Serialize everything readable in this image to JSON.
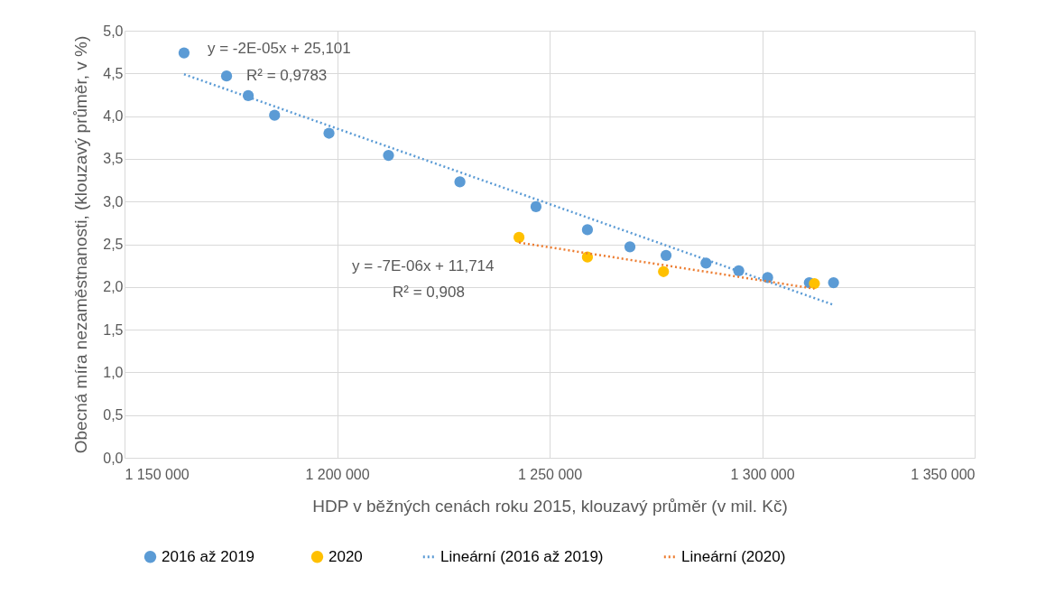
{
  "chart_data": {
    "type": "scatter",
    "xlabel": "HDP v běžných cenách roku 2015, klouzavý průměr (v mil. Kč)",
    "ylabel": "Obecná míra nezaměstnanosti, (klouzavý průměr, v %)",
    "xlim": [
      1150000,
      1350000
    ],
    "xticks": [
      {
        "value": 1150000,
        "label": "1 150 000"
      },
      {
        "value": 1200000,
        "label": "1 200 000"
      },
      {
        "value": 1250000,
        "label": "1 250 000"
      },
      {
        "value": 1300000,
        "label": "1 300 000"
      },
      {
        "value": 1350000,
        "label": "1 350 000"
      }
    ],
    "ylim": [
      0,
      5
    ],
    "yticks": [
      {
        "value": 0,
        "label": "0,0"
      },
      {
        "value": 0.5,
        "label": "0,5"
      },
      {
        "value": 1,
        "label": "1,0"
      },
      {
        "value": 1.5,
        "label": "1,5"
      },
      {
        "value": 2,
        "label": "2,0"
      },
      {
        "value": 2.5,
        "label": "2,5"
      },
      {
        "value": 3,
        "label": "3,0"
      },
      {
        "value": 3.5,
        "label": "3,5"
      },
      {
        "value": 4,
        "label": "4,0"
      },
      {
        "value": 4.5,
        "label": "4,5"
      },
      {
        "value": 5,
        "label": "5,0"
      }
    ],
    "grid": true,
    "legend": "bottom",
    "series": [
      {
        "name": "2016 až 2019",
        "marker": "circle",
        "color": "#5b9bd5",
        "x": [
          1164000,
          1174000,
          1179100,
          1185300,
          1198100,
          1212100,
          1228900,
          1246800,
          1258900,
          1268900,
          1277400,
          1286800,
          1294500,
          1301300,
          1311100,
          1316800
        ],
        "values": [
          4.74,
          4.47,
          4.24,
          4.01,
          3.8,
          3.54,
          3.23,
          2.94,
          2.67,
          2.47,
          2.37,
          2.28,
          2.19,
          2.11,
          2.05,
          2.05
        ]
      },
      {
        "name": "2020",
        "marker": "circle",
        "color": "#ffc000",
        "x": [
          1242800,
          1258900,
          1276800,
          1312300
        ],
        "values": [
          2.58,
          2.35,
          2.18,
          2.04
        ]
      },
      {
        "name": "Lineární (2016 až 2019)",
        "type": "line",
        "line_style": "dotted",
        "marker": "none",
        "color": "#5b9bd5",
        "x": [
          1164000,
          1316800
        ],
        "values": [
          4.49,
          1.79
        ]
      },
      {
        "name": "Lineární (2020)",
        "type": "line",
        "line_style": "dotted",
        "marker": "none",
        "color": "#ed7d31",
        "x": [
          1242800,
          1312300
        ],
        "values": [
          2.52,
          1.98
        ]
      }
    ],
    "annotations": [
      "y = -2E-05x + 25,101",
      "R² = 0,9783",
      "y = -7E-06x + 11,714",
      "R² = 0,908"
    ]
  }
}
